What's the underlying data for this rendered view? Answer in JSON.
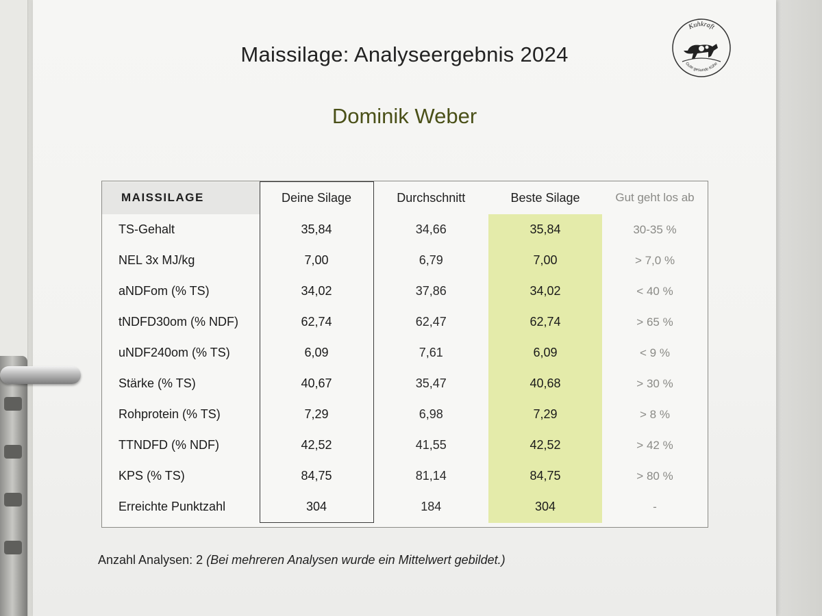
{
  "document": {
    "title": "Maissilage: Analyseergebnis 2024",
    "name": "Dominik Weber",
    "logo_text_top": "Kuhkraft",
    "logo_text_bottom": "Gute gesunde Kühe"
  },
  "table": {
    "headers": [
      "MAISSILAGE",
      "Deine Silage",
      "Durchschnitt",
      "Beste Silage",
      "Gut geht los ab"
    ],
    "rows": [
      {
        "label": "TS-Gehalt",
        "yours": "35,84",
        "avg": "34,66",
        "best": "35,84",
        "good": "30-35 %"
      },
      {
        "label": "NEL 3x MJ/kg",
        "yours": "7,00",
        "avg": "6,79",
        "best": "7,00",
        "good": "> 7,0 %"
      },
      {
        "label": "aNDFom (% TS)",
        "yours": "34,02",
        "avg": "37,86",
        "best": "34,02",
        "good": "< 40 %"
      },
      {
        "label": "tNDFD30om (% NDF)",
        "yours": "62,74",
        "avg": "62,47",
        "best": "62,74",
        "good": "> 65 %"
      },
      {
        "label": "uNDF240om (% TS)",
        "yours": "6,09",
        "avg": "7,61",
        "best": "6,09",
        "good": "< 9 %"
      },
      {
        "label": "Stärke (% TS)",
        "yours": "40,67",
        "avg": "35,47",
        "best": "40,68",
        "good": "> 30 %"
      },
      {
        "label": "Rohprotein (% TS)",
        "yours": "7,29",
        "avg": "6,98",
        "best": "7,29",
        "good": "> 8 %"
      },
      {
        "label": "TTNDFD (% NDF)",
        "yours": "42,52",
        "avg": "41,55",
        "best": "42,52",
        "good": "> 42 %"
      },
      {
        "label": "KPS (% TS)",
        "yours": "84,75",
        "avg": "81,14",
        "best": "84,75",
        "good": "> 80 %"
      },
      {
        "label": "Erreichte Punktzahl",
        "yours": "304",
        "avg": "184",
        "best": "304",
        "good": "-"
      }
    ]
  },
  "footnote": {
    "prefix": "Anzahl Analysen: 2 ",
    "note": "(Bei mehreren Analysen wurde ein Mittelwert gebildet.)"
  },
  "colors": {
    "best_highlight": "#e4ebaa",
    "name_color": "#4a5018"
  }
}
